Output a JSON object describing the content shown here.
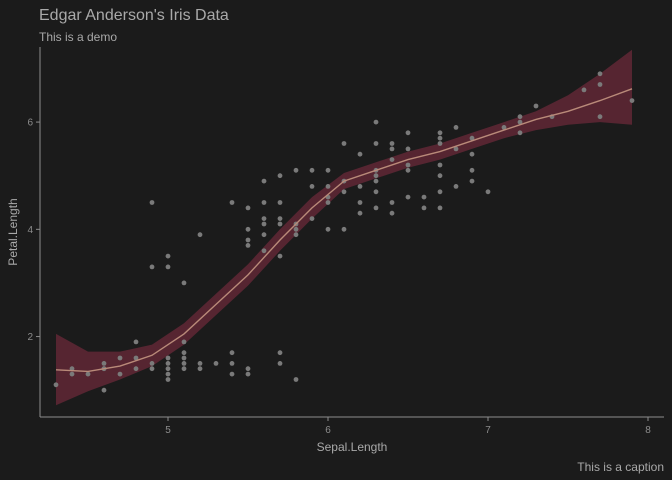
{
  "chart_data": {
    "type": "scatter",
    "title": "Edgar Anderson's Iris Data",
    "subtitle": "This is a demo",
    "caption": "This is a caption",
    "xlabel": "Sepal.Length",
    "ylabel": "Petal.Length",
    "xlim": [
      4.2,
      8.1
    ],
    "ylim": [
      0.5,
      7.4
    ],
    "xticks": [
      5,
      6,
      7,
      8
    ],
    "yticks": [
      2,
      4,
      6
    ],
    "grid": false,
    "colors": {
      "background": "#1b1b1b",
      "points": "#7a7a7a",
      "band": "#6e2a3a",
      "line": "#b98a79",
      "text": "#a9a9a9"
    },
    "points": [
      [
        4.3,
        1.1
      ],
      [
        4.4,
        1.4
      ],
      [
        4.4,
        1.3
      ],
      [
        4.5,
        1.3
      ],
      [
        4.6,
        1.4
      ],
      [
        4.6,
        1.5
      ],
      [
        4.6,
        1.0
      ],
      [
        4.6,
        1.4
      ],
      [
        4.7,
        1.3
      ],
      [
        4.7,
        1.6
      ],
      [
        4.8,
        1.4
      ],
      [
        4.8,
        1.6
      ],
      [
        4.8,
        1.9
      ],
      [
        4.9,
        1.4
      ],
      [
        4.9,
        1.5
      ],
      [
        4.9,
        3.3
      ],
      [
        4.9,
        4.5
      ],
      [
        5.0,
        1.4
      ],
      [
        5.0,
        1.5
      ],
      [
        5.0,
        1.6
      ],
      [
        5.0,
        1.2
      ],
      [
        5.0,
        1.3
      ],
      [
        5.0,
        3.5
      ],
      [
        5.0,
        3.3
      ],
      [
        5.1,
        1.4
      ],
      [
        5.1,
        1.5
      ],
      [
        5.1,
        1.7
      ],
      [
        5.1,
        1.6
      ],
      [
        5.1,
        1.9
      ],
      [
        5.1,
        3.0
      ],
      [
        5.2,
        1.5
      ],
      [
        5.2,
        1.4
      ],
      [
        5.2,
        3.9
      ],
      [
        5.3,
        1.5
      ],
      [
        5.4,
        1.7
      ],
      [
        5.4,
        1.5
      ],
      [
        5.4,
        1.3
      ],
      [
        5.4,
        4.5
      ],
      [
        5.5,
        1.3
      ],
      [
        5.5,
        1.4
      ],
      [
        5.5,
        4.0
      ],
      [
        5.5,
        3.8
      ],
      [
        5.5,
        3.7
      ],
      [
        5.5,
        4.4
      ],
      [
        5.6,
        3.6
      ],
      [
        5.6,
        4.2
      ],
      [
        5.6,
        4.1
      ],
      [
        5.6,
        4.5
      ],
      [
        5.6,
        3.9
      ],
      [
        5.6,
        4.9
      ],
      [
        5.7,
        1.5
      ],
      [
        5.7,
        1.7
      ],
      [
        5.7,
        4.5
      ],
      [
        5.7,
        3.5
      ],
      [
        5.7,
        4.2
      ],
      [
        5.7,
        4.1
      ],
      [
        5.7,
        5.0
      ],
      [
        5.8,
        1.2
      ],
      [
        5.8,
        4.1
      ],
      [
        5.8,
        4.0
      ],
      [
        5.8,
        3.9
      ],
      [
        5.8,
        5.1
      ],
      [
        5.9,
        4.8
      ],
      [
        5.9,
        4.2
      ],
      [
        5.9,
        5.1
      ],
      [
        6.0,
        4.5
      ],
      [
        6.0,
        4.0
      ],
      [
        6.0,
        5.1
      ],
      [
        6.0,
        4.8
      ],
      [
        6.0,
        4.6
      ],
      [
        6.1,
        4.7
      ],
      [
        6.1,
        4.0
      ],
      [
        6.1,
        4.9
      ],
      [
        6.1,
        5.6
      ],
      [
        6.2,
        4.5
      ],
      [
        6.2,
        4.3
      ],
      [
        6.2,
        4.8
      ],
      [
        6.2,
        5.4
      ],
      [
        6.3,
        4.7
      ],
      [
        6.3,
        4.9
      ],
      [
        6.3,
        4.4
      ],
      [
        6.3,
        5.6
      ],
      [
        6.3,
        5.1
      ],
      [
        6.3,
        5.0
      ],
      [
        6.3,
        6.0
      ],
      [
        6.4,
        4.5
      ],
      [
        6.4,
        4.3
      ],
      [
        6.4,
        5.3
      ],
      [
        6.4,
        5.5
      ],
      [
        6.4,
        5.6
      ],
      [
        6.5,
        4.6
      ],
      [
        6.5,
        5.8
      ],
      [
        6.5,
        5.5
      ],
      [
        6.5,
        5.1
      ],
      [
        6.5,
        5.2
      ],
      [
        6.6,
        4.6
      ],
      [
        6.6,
        4.4
      ],
      [
        6.7,
        4.7
      ],
      [
        6.7,
        4.4
      ],
      [
        6.7,
        5.0
      ],
      [
        6.7,
        5.8
      ],
      [
        6.7,
        5.7
      ],
      [
        6.7,
        5.6
      ],
      [
        6.7,
        5.2
      ],
      [
        6.8,
        4.8
      ],
      [
        6.8,
        5.5
      ],
      [
        6.8,
        5.9
      ],
      [
        6.9,
        4.9
      ],
      [
        6.9,
        5.1
      ],
      [
        6.9,
        5.7
      ],
      [
        6.9,
        5.4
      ],
      [
        7.0,
        4.7
      ],
      [
        7.1,
        5.9
      ],
      [
        7.2,
        6.1
      ],
      [
        7.2,
        5.8
      ],
      [
        7.2,
        6.0
      ],
      [
        7.3,
        6.3
      ],
      [
        7.4,
        6.1
      ],
      [
        7.6,
        6.6
      ],
      [
        7.7,
        6.7
      ],
      [
        7.7,
        6.9
      ],
      [
        7.7,
        6.1
      ],
      [
        7.9,
        6.4
      ]
    ],
    "smooth": {
      "x": [
        4.3,
        4.5,
        4.7,
        4.9,
        5.1,
        5.3,
        5.5,
        5.7,
        5.9,
        6.1,
        6.3,
        6.5,
        6.7,
        6.9,
        7.1,
        7.3,
        7.5,
        7.7,
        7.9
      ],
      "y": [
        1.38,
        1.35,
        1.45,
        1.65,
        2.05,
        2.6,
        3.15,
        3.8,
        4.4,
        4.9,
        5.1,
        5.3,
        5.45,
        5.65,
        5.85,
        6.05,
        6.2,
        6.4,
        6.62
      ],
      "upper": [
        2.05,
        1.72,
        1.72,
        1.85,
        2.25,
        2.8,
        3.35,
        4.0,
        4.6,
        5.05,
        5.25,
        5.45,
        5.6,
        5.8,
        6.0,
        6.2,
        6.5,
        6.9,
        7.35
      ],
      "lower": [
        0.72,
        0.98,
        1.2,
        1.45,
        1.85,
        2.4,
        2.95,
        3.6,
        4.2,
        4.75,
        4.95,
        5.15,
        5.3,
        5.5,
        5.7,
        5.85,
        5.95,
        6.0,
        5.95
      ]
    }
  }
}
